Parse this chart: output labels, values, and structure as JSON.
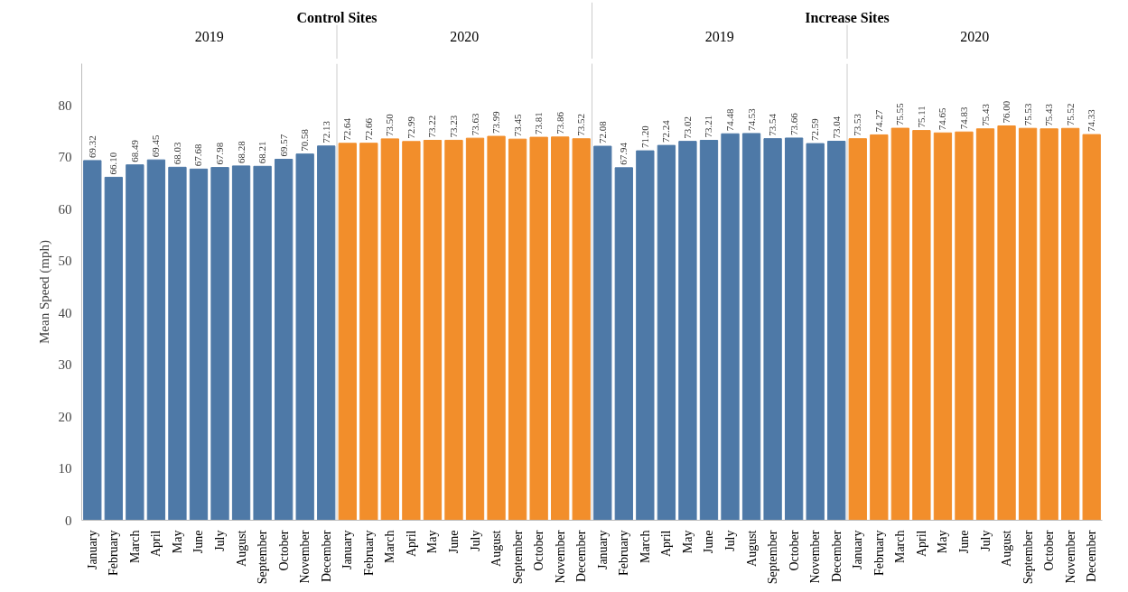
{
  "chart_data": {
    "type": "bar",
    "ylabel": "Mean Speed (mph)",
    "categories": [
      "January",
      "February",
      "March",
      "April",
      "May",
      "June",
      "July",
      "August",
      "September",
      "October",
      "November",
      "December",
      "January",
      "February",
      "March",
      "April",
      "May",
      "June",
      "July",
      "August",
      "September",
      "October",
      "November",
      "December",
      "January",
      "February",
      "March",
      "April",
      "May",
      "June",
      "July",
      "August",
      "September",
      "October",
      "November",
      "December",
      "January",
      "February",
      "March",
      "April",
      "May",
      "June",
      "July",
      "August",
      "September",
      "October",
      "November",
      "December"
    ],
    "values": [
      69.32,
      66.1,
      68.49,
      69.45,
      68.03,
      67.68,
      67.98,
      68.28,
      68.21,
      69.57,
      70.58,
      72.13,
      72.64,
      72.66,
      73.5,
      72.99,
      73.22,
      73.23,
      73.63,
      73.99,
      73.45,
      73.81,
      73.86,
      73.52,
      72.08,
      67.94,
      71.2,
      72.24,
      73.02,
      73.21,
      74.48,
      74.53,
      73.54,
      73.66,
      72.59,
      73.04,
      73.53,
      74.27,
      75.55,
      75.11,
      74.65,
      74.83,
      75.43,
      76.0,
      75.53,
      75.43,
      75.52,
      74.33
    ],
    "value_labels": [
      "69.32",
      "66.10",
      "68.49",
      "69.45",
      "68.03",
      "67.68",
      "67.98",
      "68.28",
      "68.21",
      "69.57",
      "70.58",
      "72.13",
      "72.64",
      "72.66",
      "73.50",
      "72.99",
      "73.22",
      "73.23",
      "73.63",
      "73.99",
      "73.45",
      "73.81",
      "73.86",
      "73.52",
      "72.08",
      "67.94",
      "71.20",
      "72.24",
      "73.02",
      "73.21",
      "74.48",
      "74.53",
      "73.54",
      "73.66",
      "72.59",
      "73.04",
      "73.53",
      "74.27",
      "75.55",
      "75.11",
      "74.65",
      "74.83",
      "75.43",
      "76.00",
      "75.53",
      "75.43",
      "75.52",
      "74.33"
    ],
    "colors": [
      "#4e79a7",
      "#4e79a7",
      "#4e79a7",
      "#4e79a7",
      "#4e79a7",
      "#4e79a7",
      "#4e79a7",
      "#4e79a7",
      "#4e79a7",
      "#4e79a7",
      "#4e79a7",
      "#4e79a7",
      "#f28e2b",
      "#f28e2b",
      "#f28e2b",
      "#f28e2b",
      "#f28e2b",
      "#f28e2b",
      "#f28e2b",
      "#f28e2b",
      "#f28e2b",
      "#f28e2b",
      "#f28e2b",
      "#f28e2b",
      "#4e79a7",
      "#4e79a7",
      "#4e79a7",
      "#4e79a7",
      "#4e79a7",
      "#4e79a7",
      "#4e79a7",
      "#4e79a7",
      "#4e79a7",
      "#4e79a7",
      "#4e79a7",
      "#4e79a7",
      "#f28e2b",
      "#f28e2b",
      "#f28e2b",
      "#f28e2b",
      "#f28e2b",
      "#f28e2b",
      "#f28e2b",
      "#f28e2b",
      "#f28e2b",
      "#f28e2b",
      "#f28e2b",
      "#f28e2b"
    ],
    "annotations": [
      "Control Sites",
      "Increase Sites",
      "2019",
      "2020",
      "2019",
      "2020"
    ],
    "ylim": [
      0,
      88
    ],
    "yticks": [
      0,
      10,
      20,
      30,
      40,
      50,
      60,
      70,
      80
    ],
    "grid": false
  }
}
